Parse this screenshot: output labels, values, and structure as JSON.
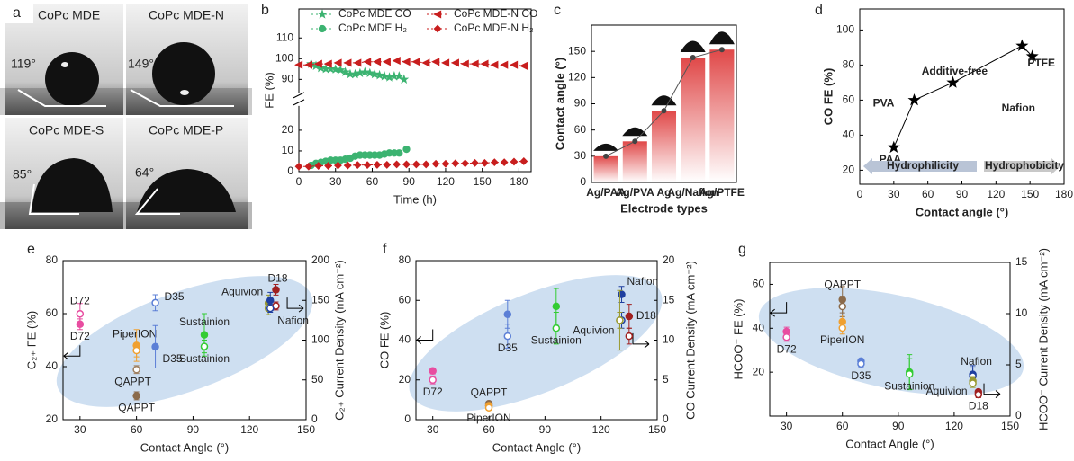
{
  "photos": {
    "panel": "a",
    "images": [
      {
        "label": "CoPc MDE",
        "angle": "119°"
      },
      {
        "label": "CoPc MDE-N",
        "angle": "149°"
      },
      {
        "label": "CoPc MDE-S",
        "angle": "85°"
      },
      {
        "label": "CoPc MDE-P",
        "angle": "64°"
      }
    ]
  },
  "chart_data": [
    {
      "panel": "b",
      "type": "line",
      "xlabel": "Time (h)",
      "ylabel": "FE (%)",
      "xlim": [
        0,
        190
      ],
      "xticks": [
        0,
        30,
        60,
        90,
        120,
        150,
        180
      ],
      "ylim": [
        0,
        124
      ],
      "y_break": [
        30,
        85
      ],
      "yticks": [
        0,
        10,
        20,
        90,
        100,
        110
      ],
      "legend": "top",
      "series": [
        {
          "name": "CoPc MDE CO",
          "color": "#3cb371",
          "marker": "star",
          "x": [
            10,
            14,
            18,
            22,
            26,
            30,
            34,
            38,
            42,
            46,
            50,
            54,
            58,
            62,
            66,
            70,
            74,
            78,
            82,
            86
          ],
          "values": [
            97.5,
            96.5,
            95.5,
            95,
            95,
            94.8,
            94.5,
            93.5,
            92.5,
            92.5,
            93,
            93.5,
            93,
            92.5,
            92,
            91.5,
            91,
            91.5,
            91.5,
            90
          ]
        },
        {
          "name": "CoPc MDE-N CO",
          "color": "#c81e1e",
          "marker": "triangle-left",
          "x": [
            0,
            8,
            16,
            24,
            32,
            40,
            48,
            56,
            64,
            72,
            80,
            88,
            96,
            104,
            112,
            120,
            128,
            136,
            144,
            152,
            160,
            168,
            176,
            184
          ],
          "values": [
            97,
            97,
            97.5,
            97.5,
            98,
            98,
            98,
            98.5,
            98.5,
            98.5,
            99,
            98.5,
            98.5,
            98,
            98.5,
            98,
            98,
            97.5,
            97.5,
            97.5,
            97,
            97,
            97,
            96.5
          ]
        },
        {
          "name": "CoPc MDE H₂",
          "color": "#3cb371",
          "marker": "circle",
          "x": [
            10,
            14,
            18,
            22,
            26,
            30,
            34,
            38,
            42,
            46,
            50,
            54,
            58,
            62,
            66,
            70,
            74,
            78,
            82,
            88
          ],
          "values": [
            3,
            4,
            4.5,
            5,
            5.5,
            5.5,
            5.5,
            6,
            6.5,
            7.5,
            8,
            8,
            8,
            8,
            8,
            8.5,
            9,
            9,
            9,
            10.8
          ]
        },
        {
          "name": "CoPc MDE-N H₂",
          "color": "#c81e1e",
          "marker": "diamond",
          "x": [
            0,
            8,
            16,
            24,
            32,
            40,
            48,
            56,
            64,
            72,
            80,
            88,
            96,
            104,
            112,
            120,
            128,
            136,
            144,
            152,
            160,
            168,
            176,
            184
          ],
          "values": [
            2.5,
            2.5,
            2.8,
            2.8,
            3,
            3,
            3.2,
            3.2,
            3.3,
            3.3,
            3.5,
            3.5,
            3.5,
            3.5,
            3.8,
            3.8,
            4,
            4,
            4.2,
            4.2,
            4.5,
            4.5,
            4.8,
            5
          ]
        }
      ]
    },
    {
      "panel": "c",
      "type": "bar",
      "xlabel": "Electrode types",
      "ylabel": "Contact angle (°)",
      "categories": [
        "Ag/PAA",
        "Ag/PVA",
        "Ag",
        "Ag/Nafion",
        "Ag/PTFE"
      ],
      "values": [
        30,
        47,
        82,
        143,
        152
      ],
      "color": "#e04848",
      "ylim": [
        0,
        180
      ],
      "yticks": [
        0,
        30,
        60,
        90,
        120,
        150
      ]
    },
    {
      "panel": "d",
      "type": "scatter-line",
      "xlabel": "Contact angle (°)",
      "ylabel": "CO FE (%)",
      "x": [
        30,
        48,
        82,
        143,
        152
      ],
      "values": [
        33,
        60,
        70,
        91,
        85
      ],
      "point_labels": [
        "PAA",
        "PVA",
        "Additive-free",
        "Nafion",
        "PTFE"
      ],
      "color": "#000000",
      "xlim": [
        0,
        180
      ],
      "xticks": [
        0,
        30,
        60,
        90,
        120,
        150,
        180
      ],
      "ylim": [
        12,
        112
      ],
      "yticks": [
        20,
        40,
        60,
        80,
        100
      ],
      "annotations": [
        "Hydrophilicity",
        "Hydrophobicity"
      ]
    },
    {
      "panel": "e",
      "type": "scatter",
      "xlabel": "Contact Angle (°)",
      "ylabel": "C₂₊ FE (%)",
      "y2label": "C₂₊ Current Density (mA cm⁻²)",
      "xlim": [
        21,
        150
      ],
      "xticks": [
        30,
        60,
        90,
        120,
        150
      ],
      "ylim": [
        20,
        80
      ],
      "yticks": [
        20,
        40,
        60,
        80
      ],
      "y2lim": [
        0,
        200
      ],
      "y2ticks": [
        0,
        50,
        100,
        150,
        200
      ],
      "points": [
        {
          "x": 30,
          "y": 133,
          "error": 13,
          "color": "#e84da0",
          "filled": false,
          "axis": "y2",
          "label": "D72"
        },
        {
          "x": 30,
          "y": 56,
          "error": 2,
          "color": "#e84da0",
          "filled": true,
          "axis": "y",
          "label": "D72"
        },
        {
          "x": 60,
          "y": 48,
          "error": 6,
          "color": "#f0a030",
          "filled": true,
          "axis": "y",
          "label": "PiperION"
        },
        {
          "x": 60,
          "y": 87,
          "error": 8,
          "color": "#f0a030",
          "filled": false,
          "axis": "y2"
        },
        {
          "x": 60,
          "y": 63,
          "error": 5,
          "color": "#a08060",
          "filled": false,
          "axis": "y2",
          "label": "QAPPT"
        },
        {
          "x": 60,
          "y": 29,
          "error": 1.5,
          "color": "#8b6a4a",
          "filled": true,
          "axis": "y",
          "label": "QAPPT"
        },
        {
          "x": 70,
          "y": 147,
          "error": 10,
          "color": "#5b7fd6",
          "filled": false,
          "axis": "y2",
          "label": "D35"
        },
        {
          "x": 70,
          "y": 47.5,
          "error": 8,
          "color": "#5b7fd6",
          "filled": true,
          "axis": "y",
          "label": "D35"
        },
        {
          "x": 96,
          "y": 52,
          "error": 8,
          "color": "#33cc33",
          "filled": true,
          "axis": "y",
          "label": "Sustainion"
        },
        {
          "x": 96,
          "y": 92,
          "error": 8,
          "color": "#33cc33",
          "filled": false,
          "axis": "y2",
          "label": "Sustainion"
        },
        {
          "x": 130,
          "y": 64,
          "error": 3,
          "color": "#9a9a30",
          "filled": true,
          "axis": "y",
          "label": "Aquivion"
        },
        {
          "x": 130,
          "y": 140,
          "error": 8,
          "color": "#9a9a30",
          "filled": false,
          "axis": "y2"
        },
        {
          "x": 134,
          "y": 69,
          "error": 2,
          "color": "#a02020",
          "filled": true,
          "axis": "y",
          "label": "D18"
        },
        {
          "x": 134,
          "y": 143,
          "error": 5,
          "color": "#a02020",
          "filled": false,
          "axis": "y2"
        },
        {
          "x": 131,
          "y": 65,
          "error": 3,
          "color": "#1f3f9f",
          "filled": true,
          "axis": "y"
        },
        {
          "x": 131,
          "y": 140,
          "error": 5,
          "color": "#1f3f9f",
          "filled": false,
          "axis": "y2",
          "label": "Nafion"
        }
      ]
    },
    {
      "panel": "f",
      "type": "scatter",
      "xlabel": "Contact Angle (°)",
      "ylabel": "CO FE (%)",
      "y2label": "CO Current Density (mA cm⁻²)",
      "xlim": [
        21,
        150
      ],
      "xticks": [
        30,
        60,
        90,
        120,
        150
      ],
      "ylim": [
        0,
        80
      ],
      "yticks": [
        0,
        20,
        40,
        60,
        80
      ],
      "y2lim": [
        0,
        20
      ],
      "y2ticks": [
        0,
        5,
        10,
        15,
        20
      ],
      "points": [
        {
          "x": 30,
          "y": 24.5,
          "error": 1.5,
          "color": "#e84da0",
          "filled": true,
          "axis": "y"
        },
        {
          "x": 30,
          "y": 5,
          "error": 0.5,
          "color": "#e84da0",
          "filled": false,
          "axis": "y2",
          "label": "D72"
        },
        {
          "x": 60,
          "y": 8,
          "error": 1,
          "color": "#8b6a4a",
          "filled": true,
          "axis": "y",
          "label": "QAPPT"
        },
        {
          "x": 60,
          "y": 1.75,
          "error": 0.3,
          "color": "#8b6a4a",
          "filled": false,
          "axis": "y2"
        },
        {
          "x": 60,
          "y": 7,
          "error": 1,
          "color": "#f0a030",
          "filled": true,
          "axis": "y"
        },
        {
          "x": 60,
          "y": 1.5,
          "error": 0.3,
          "color": "#f0a030",
          "filled": false,
          "axis": "y2",
          "label": "PiperION"
        },
        {
          "x": 70,
          "y": 53,
          "error": 7,
          "color": "#5b7fd6",
          "filled": true,
          "axis": "y"
        },
        {
          "x": 70,
          "y": 10.5,
          "error": 1.5,
          "color": "#5b7fd6",
          "filled": false,
          "axis": "y2",
          "label": "D35"
        },
        {
          "x": 96,
          "y": 57,
          "error": 9,
          "color": "#33cc33",
          "filled": true,
          "axis": "y"
        },
        {
          "x": 96,
          "y": 11.5,
          "error": 2,
          "color": "#33cc33",
          "filled": false,
          "axis": "y2",
          "label": "Sustainion"
        },
        {
          "x": 131,
          "y": 63,
          "error": 4,
          "color": "#1f3f9f",
          "filled": true,
          "axis": "y",
          "label": "Nafion"
        },
        {
          "x": 131,
          "y": 12.5,
          "error": 1,
          "color": "#1f3f9f",
          "filled": false,
          "axis": "y2"
        },
        {
          "x": 135,
          "y": 52,
          "error": 6,
          "color": "#a02020",
          "filled": true,
          "axis": "y",
          "label": "D18"
        },
        {
          "x": 135,
          "y": 10.5,
          "error": 1,
          "color": "#a02020",
          "filled": false,
          "axis": "y2"
        },
        {
          "x": 130,
          "y": 50,
          "error": 15,
          "color": "#9a9a30",
          "filled": true,
          "axis": "y",
          "label": "Aquivion"
        },
        {
          "x": 130,
          "y": 12.5,
          "error": 1,
          "color": "#9a9a30",
          "filled": false,
          "axis": "y2"
        }
      ]
    },
    {
      "panel": "g",
      "type": "scatter",
      "xlabel": "Contact Angle (°)",
      "ylabel": "HCOO⁻ FE (%)",
      "y2label": "HCOO⁻ Current Density (mA cm⁻²)",
      "xlim": [
        21,
        150
      ],
      "xticks": [
        30,
        60,
        90,
        120,
        150
      ],
      "ylim": [
        0,
        70
      ],
      "yticks": [
        20,
        40,
        60
      ],
      "y2lim": [
        0,
        15
      ],
      "y2ticks": [
        0,
        5,
        10,
        15
      ],
      "points": [
        {
          "x": 30,
          "y": 38.5,
          "error": 2,
          "color": "#e84da0",
          "filled": true,
          "axis": "y"
        },
        {
          "x": 30,
          "y": 7.7,
          "error": 0.4,
          "color": "#e84da0",
          "filled": false,
          "axis": "y2",
          "label": "D72"
        },
        {
          "x": 60,
          "y": 53,
          "error": 6,
          "color": "#8b6a4a",
          "filled": true,
          "axis": "y",
          "label": "QAPPT"
        },
        {
          "x": 60,
          "y": 10.7,
          "error": 1,
          "color": "#8b6a4a",
          "filled": false,
          "axis": "y2"
        },
        {
          "x": 60,
          "y": 43,
          "error": 3,
          "color": "#f0a030",
          "filled": true,
          "axis": "y"
        },
        {
          "x": 60,
          "y": 8.6,
          "error": 0.6,
          "color": "#f0a030",
          "filled": false,
          "axis": "y2",
          "label": "PiperION"
        },
        {
          "x": 70,
          "y": 25,
          "error": 1,
          "color": "#5b7fd6",
          "filled": true,
          "axis": "y"
        },
        {
          "x": 70,
          "y": 5.1,
          "error": 0.3,
          "color": "#5b7fd6",
          "filled": false,
          "axis": "y2",
          "label": "D35"
        },
        {
          "x": 96,
          "y": 20,
          "error": 8,
          "color": "#33cc33",
          "filled": true,
          "axis": "y"
        },
        {
          "x": 96,
          "y": 4.1,
          "error": 1.5,
          "color": "#33cc33",
          "filled": false,
          "axis": "y2",
          "label": "Sustainion"
        },
        {
          "x": 130,
          "y": 19,
          "error": 4,
          "color": "#1f3f9f",
          "filled": true,
          "axis": "y",
          "label": "Nafion"
        },
        {
          "x": 130,
          "y": 3.9,
          "error": 0.8,
          "color": "#1f3f9f",
          "filled": false,
          "axis": "y2"
        },
        {
          "x": 130,
          "y": 16,
          "error": 2,
          "color": "#9a9a30",
          "filled": true,
          "axis": "y",
          "label": "Aquivion"
        },
        {
          "x": 130,
          "y": 3.2,
          "error": 0.4,
          "color": "#9a9a30",
          "filled": false,
          "axis": "y2"
        },
        {
          "x": 133,
          "y": 11,
          "error": 1,
          "color": "#a02020",
          "filled": true,
          "axis": "y",
          "label": "D18"
        },
        {
          "x": 133,
          "y": 2.1,
          "error": 0.3,
          "color": "#a02020",
          "filled": false,
          "axis": "y2"
        }
      ]
    }
  ]
}
